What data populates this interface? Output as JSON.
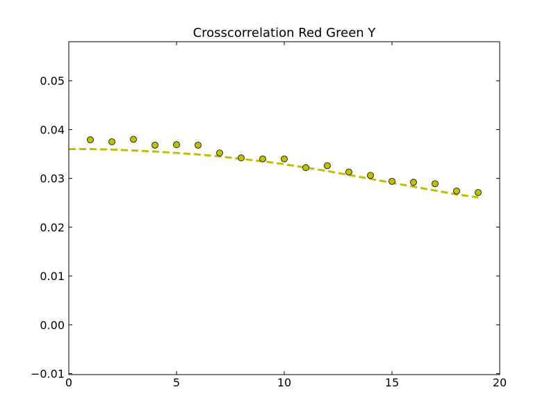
{
  "chart_data": {
    "type": "scatter",
    "title": "Crosscorrelation Red Green Y",
    "xlabel": "",
    "ylabel": "",
    "xlim": [
      0,
      20
    ],
    "ylim": [
      -0.0102,
      0.058
    ],
    "xticks": [
      0,
      5,
      10,
      15,
      20
    ],
    "xtick_labels": [
      "0",
      "5",
      "10",
      "15",
      "20"
    ],
    "yticks": [
      -0.01,
      0.0,
      0.01,
      0.02,
      0.03,
      0.04,
      0.05
    ],
    "ytick_labels": [
      "−0.01",
      "0.00",
      "0.01",
      "0.02",
      "0.03",
      "0.04",
      "0.05"
    ],
    "grid": false,
    "legend": "none",
    "colors": {
      "marker_fill": "#bfbf00",
      "marker_edge": "#000000",
      "fit_line": "#bfbf00"
    },
    "series": [
      {
        "style": "markers",
        "x": [
          1,
          2,
          3,
          4,
          5,
          6,
          7,
          8,
          9,
          10,
          11,
          12,
          13,
          14,
          15,
          16,
          17,
          18,
          19
        ],
        "y": [
          0.0379,
          0.0375,
          0.038,
          0.0368,
          0.0369,
          0.0368,
          0.0352,
          0.0342,
          0.034,
          0.034,
          0.0322,
          0.0326,
          0.0313,
          0.0306,
          0.0294,
          0.0292,
          0.0289,
          0.0274,
          0.0271
        ]
      },
      {
        "style": "dashed-line",
        "x": [
          0,
          1,
          2,
          3,
          4,
          5,
          6,
          7,
          8,
          9,
          10,
          11,
          12,
          13,
          14,
          15,
          16,
          17,
          18,
          19
        ],
        "y": [
          0.036,
          0.036,
          0.0359,
          0.0357,
          0.0355,
          0.0352,
          0.0349,
          0.0345,
          0.034,
          0.0335,
          0.0329,
          0.0322,
          0.0315,
          0.0307,
          0.0299,
          0.0291,
          0.0283,
          0.0275,
          0.0267,
          0.0261
        ]
      }
    ]
  }
}
